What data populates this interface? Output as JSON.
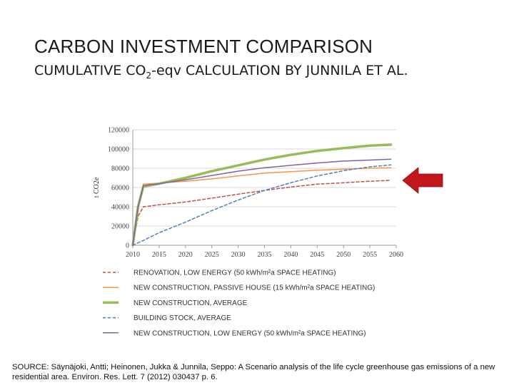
{
  "title": "CARBON INVESTMENT COMPARISON",
  "subtitle": {
    "before": "CUMULATIVE CO",
    "sub": "2",
    "after": "-eqv CALCULATION BY JUNNILA ET AL."
  },
  "source": "SOURCE: Säynäjoki, Antti; Heinonen, Jukka & Junnila, Seppo: A Scenario analysis of the life cycle greenhouse gas emissions of a new residential area. Environ. Res. Lett. 7 (2012) 030437 p. 6.",
  "arrow": {
    "icon": "red-arrow-left-icon",
    "color": "#c0161c"
  },
  "chart_data": {
    "type": "line",
    "ylabel": "t CO2e",
    "xlim": [
      2010,
      2060
    ],
    "ylim": [
      0,
      120000
    ],
    "xticks": [
      "2010",
      "2015",
      "2020",
      "2025",
      "2030",
      "2035",
      "2040",
      "2045",
      "2050",
      "2055",
      "2060"
    ],
    "yticks": [
      "0",
      "20000",
      "40000",
      "60000",
      "80000",
      "100000",
      "120000"
    ],
    "grid": "horizontal",
    "legend_position": "bottom",
    "series": [
      {
        "name": "RENOVATION, LOW ENERGY (50 kWh/m²a SPACE HEATING)",
        "color": "#c0504d",
        "style": "dashed",
        "width": 1.5,
        "x": [
          2010,
          2011,
          2012,
          2015,
          2020,
          2025,
          2030,
          2035,
          2040,
          2045,
          2050,
          2055,
          2059
        ],
        "y": [
          0,
          30000,
          40000,
          42000,
          45000,
          49000,
          53000,
          57000,
          60500,
          63500,
          65000,
          66500,
          67500
        ]
      },
      {
        "name": "NEW CONSTRUCTION, PASSIVE HOUSE (15 kWh/m²a SPACE HEATING)",
        "color": "#f79646",
        "style": "solid",
        "width": 1.5,
        "x": [
          2010,
          2011,
          2012,
          2015,
          2020,
          2025,
          2030,
          2035,
          2040,
          2045,
          2050,
          2055,
          2059
        ],
        "y": [
          0,
          40000,
          63500,
          64500,
          66500,
          69000,
          72000,
          75000,
          76500,
          78000,
          79000,
          80000,
          80500
        ]
      },
      {
        "name": "NEW CONSTRUCTION, AVERAGE",
        "color": "#9bbb59",
        "style": "solid",
        "width": 3.5,
        "x": [
          2010,
          2011,
          2012,
          2015,
          2020,
          2025,
          2030,
          2035,
          2040,
          2045,
          2050,
          2055,
          2059
        ],
        "y": [
          0,
          40000,
          61000,
          64000,
          70000,
          77000,
          83000,
          89000,
          94000,
          98000,
          101000,
          103500,
          104500
        ]
      },
      {
        "name": "BUILDING STOCK, AVERAGE",
        "color": "#4f81bd",
        "style": "dashed",
        "width": 1.5,
        "x": [
          2010,
          2012,
          2015,
          2020,
          2025,
          2030,
          2035,
          2040,
          2045,
          2050,
          2055,
          2059
        ],
        "y": [
          0,
          5000,
          13000,
          24000,
          36000,
          47000,
          57000,
          65000,
          72000,
          77500,
          81500,
          83500
        ]
      },
      {
        "name": "NEW CONSTRUCTION, LOW ENERGY (50 kWh/m²a SPACE HEATING)",
        "color": "#8064a2",
        "style": "solid",
        "width": 1.5,
        "x": [
          2010,
          2011,
          2012,
          2015,
          2020,
          2025,
          2030,
          2035,
          2040,
          2045,
          2050,
          2055,
          2059
        ],
        "y": [
          0,
          40000,
          62000,
          64000,
          68000,
          72500,
          77000,
          80500,
          83000,
          85500,
          87500,
          88500,
          89500
        ]
      }
    ]
  }
}
